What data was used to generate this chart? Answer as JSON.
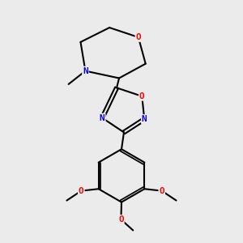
{
  "bg": "#ebebeb",
  "bond_color": "#000000",
  "O_color": "#ff0000",
  "N_color": "#0000ff",
  "figsize": [
    3.0,
    3.0
  ],
  "dpi": 100,
  "xlim": [
    0,
    10
  ],
  "ylim": [
    0,
    10
  ]
}
